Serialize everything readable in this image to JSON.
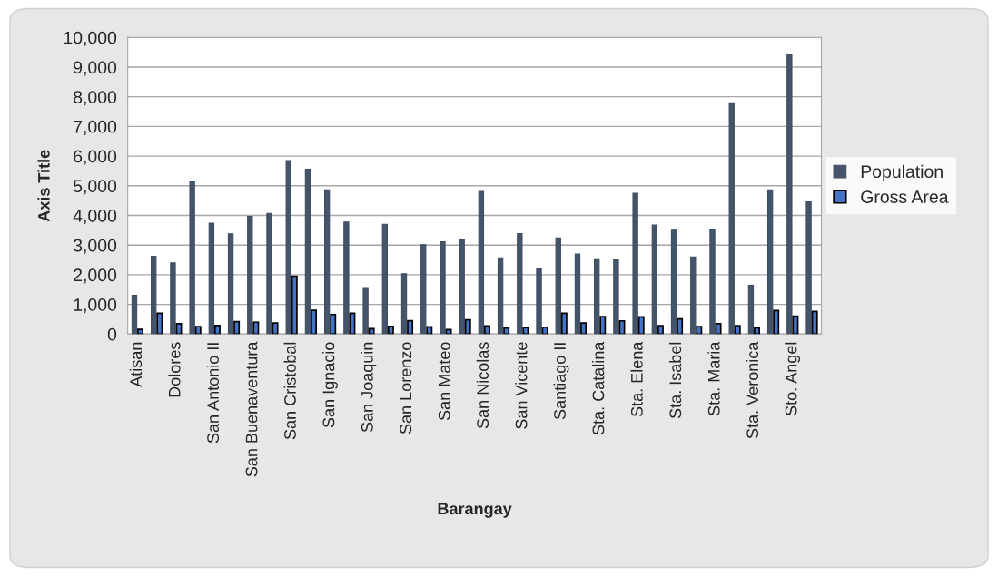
{
  "chart_data": {
    "type": "bar",
    "xlabel": "Barangay",
    "ylabel": "Axis Title",
    "categories": [
      "Atisan",
      null,
      "Dolores",
      null,
      "San Antonio II",
      null,
      "San Buenaventura",
      null,
      "San Cristobal",
      null,
      "San Ignacio",
      null,
      "San Joaquin",
      null,
      "San Lorenzo",
      null,
      "San Mateo",
      null,
      "San Nicolas",
      null,
      "San Vicente",
      null,
      "Santiago II",
      null,
      "Sta. Catalina",
      null,
      "Sta. Elena",
      null,
      "Sta. Isabel",
      null,
      "Sta. Maria",
      null,
      "Sta. Veronica",
      null,
      "Sto. Angel",
      null
    ],
    "series": [
      {
        "name": "Population",
        "color": "#44546a",
        "values": [
          1310,
          2620,
          2400,
          5160,
          3740,
          3380,
          3970,
          4070,
          5850,
          5560,
          4860,
          3780,
          1570,
          3700,
          2030,
          3010,
          3110,
          3190,
          4810,
          2570,
          3390,
          2210,
          3240,
          2700,
          2540,
          2530,
          4750,
          3680,
          3500,
          2600,
          3530,
          7800,
          1640,
          4860,
          9420,
          4460
        ]
      },
      {
        "name": "Gross Area",
        "color": "#4472c4",
        "values": [
          160,
          700,
          350,
          250,
          290,
          420,
          400,
          370,
          1950,
          800,
          660,
          700,
          180,
          260,
          450,
          240,
          150,
          480,
          275,
          200,
          220,
          230,
          700,
          370,
          590,
          445,
          580,
          285,
          510,
          255,
          350,
          285,
          210,
          795,
          605,
          760
        ]
      }
    ],
    "ylim": [
      0,
      10000
    ],
    "yticks": [
      0,
      {
        "value": 1000,
        "label": "1,000"
      },
      {
        "value": 2000,
        "label": "2,000"
      },
      {
        "value": 3000,
        "label": "3,000"
      },
      {
        "value": 4000,
        "label": "4,000"
      },
      {
        "value": 5000,
        "label": "5,000"
      },
      {
        "value": 6000,
        "label": "6,000"
      },
      {
        "value": 7000,
        "label": "7,000"
      },
      {
        "value": 8000,
        "label": "8,000"
      },
      {
        "value": 9000,
        "label": "9,000"
      },
      {
        "value": 10000,
        "label": "10,000"
      }
    ],
    "grid": "y",
    "legend": "right"
  }
}
